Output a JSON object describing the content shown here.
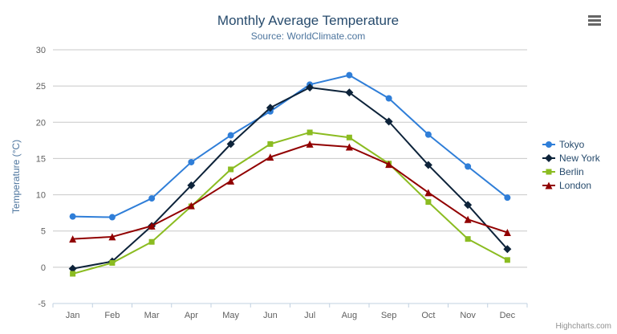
{
  "chart_data": {
    "type": "line",
    "title": "Monthly Average Temperature",
    "subtitle": "Source: WorldClimate.com",
    "xlabel": "",
    "ylabel": "Temperature (°C)",
    "categories": [
      "Jan",
      "Feb",
      "Mar",
      "Apr",
      "May",
      "Jun",
      "Jul",
      "Aug",
      "Sep",
      "Oct",
      "Nov",
      "Dec"
    ],
    "ylim": [
      -5,
      30
    ],
    "yticks": [
      -5,
      0,
      5,
      10,
      15,
      20,
      25,
      30
    ],
    "grid": true,
    "legend_position": "right",
    "series": [
      {
        "name": "Tokyo",
        "color": "#2f7ed8",
        "marker": "circle",
        "values": [
          7.0,
          6.9,
          9.5,
          14.5,
          18.2,
          21.5,
          25.2,
          26.5,
          23.3,
          18.3,
          13.9,
          9.6
        ]
      },
      {
        "name": "New York",
        "color": "#0d233a",
        "marker": "diamond",
        "values": [
          -0.2,
          0.8,
          5.7,
          11.3,
          17.0,
          22.0,
          24.8,
          24.1,
          20.1,
          14.1,
          8.6,
          2.5
        ]
      },
      {
        "name": "Berlin",
        "color": "#8bbc21",
        "marker": "square",
        "values": [
          -0.9,
          0.6,
          3.5,
          8.4,
          13.5,
          17.0,
          18.6,
          17.9,
          14.3,
          9.0,
          3.9,
          1.0
        ]
      },
      {
        "name": "London",
        "color": "#910000",
        "marker": "triangle",
        "values": [
          3.9,
          4.2,
          5.7,
          8.5,
          11.9,
          15.2,
          17.0,
          16.6,
          14.2,
          10.3,
          6.6,
          4.8
        ]
      }
    ]
  },
  "credits": {
    "label": "Highcharts.com"
  },
  "colors": {
    "grid_line": "#c8c8c8",
    "axis_line": "#c0d0e0",
    "tick_text": "#606060"
  }
}
